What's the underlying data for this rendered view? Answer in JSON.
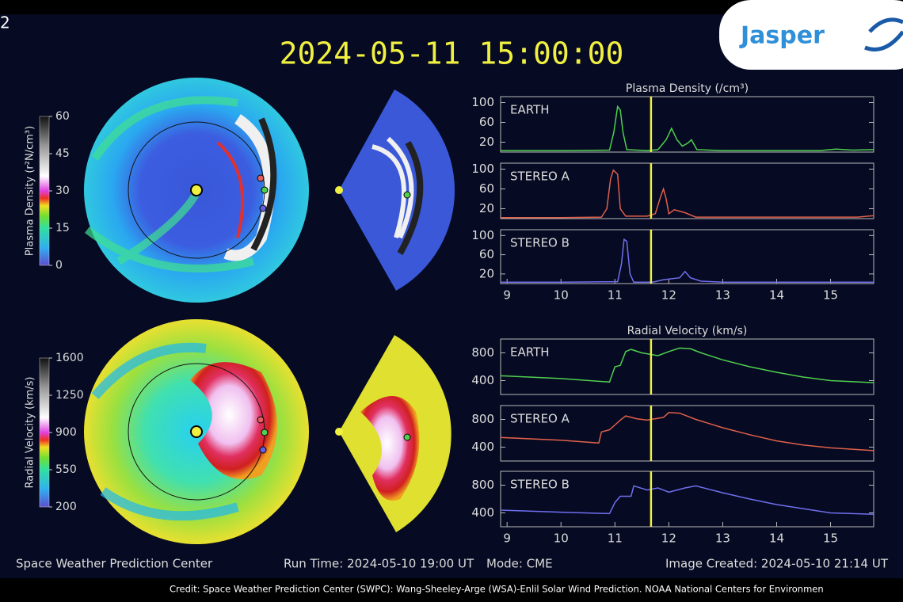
{
  "slide_number": "2",
  "logo": "Jasper",
  "title": "2024-05-11 15:00:00",
  "colorbars": [
    {
      "label": "Plasma Density (r²N/cm³)",
      "lim": [
        0,
        60
      ],
      "ticks": [
        0,
        15,
        30,
        45,
        60
      ]
    },
    {
      "label": "Radial Velocity (km/s)",
      "lim": [
        200,
        1600
      ],
      "ticks": [
        200,
        550,
        900,
        1250,
        1600
      ]
    }
  ],
  "chart_data": [
    {
      "type": "line",
      "title": "Plasma Density (/cm³)",
      "label": "EARTH",
      "color": "#4fd04f",
      "x": [
        8.88,
        10.0,
        10.9,
        10.98,
        11.05,
        11.1,
        11.15,
        11.22,
        11.6,
        11.8,
        11.95,
        12.05,
        12.15,
        12.25,
        12.35,
        12.42,
        12.52,
        13.0,
        14.8,
        15.1,
        15.4,
        15.8
      ],
      "values": [
        3,
        3,
        4,
        40,
        92,
        85,
        40,
        5,
        3,
        5,
        25,
        48,
        25,
        12,
        18,
        25,
        5,
        3,
        3,
        6,
        4,
        5
      ],
      "xlim": [
        8.88,
        15.8
      ],
      "ylim": [
        0,
        112
      ],
      "yticks": [
        20,
        60,
        100
      ],
      "marker_x": 11.67
    },
    {
      "type": "line",
      "label": "STEREO A",
      "color": "#e0604a",
      "x": [
        8.88,
        10.0,
        10.75,
        10.85,
        10.92,
        10.97,
        11.05,
        11.1,
        11.2,
        11.6,
        11.75,
        11.85,
        11.9,
        11.95,
        12.0,
        12.1,
        12.3,
        12.5,
        14.0,
        15.5,
        15.8
      ],
      "values": [
        2,
        2,
        3,
        20,
        80,
        98,
        90,
        20,
        5,
        5,
        10,
        45,
        60,
        40,
        10,
        18,
        12,
        3,
        3,
        3,
        6
      ],
      "xlim": [
        8.88,
        15.8
      ],
      "ylim": [
        0,
        112
      ],
      "yticks": [
        20,
        60,
        100
      ],
      "marker_x": 11.67
    },
    {
      "type": "line",
      "label": "STEREO B",
      "color": "#6f6fef",
      "x": [
        8.88,
        10.0,
        11.05,
        11.12,
        11.17,
        11.22,
        11.28,
        11.35,
        11.7,
        11.9,
        12.2,
        12.3,
        12.4,
        12.6,
        13.0,
        15.8
      ],
      "values": [
        3,
        3,
        4,
        40,
        92,
        88,
        20,
        3,
        3,
        8,
        12,
        25,
        12,
        5,
        3,
        3
      ],
      "xlim": [
        8.88,
        15.8
      ],
      "ylim": [
        0,
        112
      ],
      "yticks": [
        20,
        60,
        100
      ],
      "xticks": [
        9,
        10,
        11,
        12,
        13,
        14,
        15
      ],
      "marker_x": 11.67
    },
    {
      "type": "line",
      "title": "Radial Velocity (km/s)",
      "label": "EARTH",
      "color": "#4fd04f",
      "x": [
        8.88,
        10.0,
        10.9,
        11.0,
        11.1,
        11.2,
        11.3,
        11.5,
        11.8,
        12.0,
        12.2,
        12.4,
        12.6,
        13.0,
        13.5,
        14.0,
        14.5,
        15.0,
        15.8
      ],
      "values": [
        470,
        430,
        380,
        600,
        620,
        820,
        850,
        800,
        760,
        820,
        870,
        860,
        800,
        700,
        600,
        520,
        450,
        400,
        370
      ],
      "xlim": [
        8.88,
        15.8
      ],
      "ylim": [
        200,
        1000
      ],
      "yticks": [
        400,
        800
      ],
      "marker_x": 11.67
    },
    {
      "type": "line",
      "label": "STEREO A",
      "color": "#e0604a",
      "x": [
        8.88,
        10.0,
        10.7,
        10.75,
        10.9,
        11.0,
        11.1,
        11.2,
        11.4,
        11.6,
        11.9,
        12.0,
        12.2,
        12.5,
        13.0,
        13.5,
        14.0,
        14.5,
        15.0,
        15.8
      ],
      "values": [
        540,
        500,
        460,
        620,
        650,
        720,
        790,
        850,
        810,
        790,
        830,
        900,
        890,
        800,
        680,
        580,
        490,
        430,
        390,
        350
      ],
      "xlim": [
        8.88,
        15.8
      ],
      "ylim": [
        200,
        1000
      ],
      "yticks": [
        400,
        800
      ],
      "marker_x": 11.67
    },
    {
      "type": "line",
      "label": "STEREO B",
      "color": "#6f6fef",
      "x": [
        8.88,
        10.0,
        10.9,
        11.0,
        11.1,
        11.3,
        11.35,
        11.6,
        11.8,
        12.0,
        12.3,
        12.5,
        13.0,
        13.5,
        14.0,
        14.5,
        15.0,
        15.8
      ],
      "values": [
        440,
        410,
        390,
        550,
        640,
        640,
        790,
        730,
        760,
        700,
        760,
        790,
        690,
        600,
        520,
        460,
        400,
        380
      ],
      "xlim": [
        8.88,
        15.8
      ],
      "ylim": [
        200,
        1000
      ],
      "yticks": [
        400,
        800
      ],
      "xticks": [
        9,
        10,
        11,
        12,
        13,
        14,
        15
      ],
      "marker_x": 11.67
    }
  ],
  "footer": {
    "left": "Space Weather Prediction Center",
    "run_time": "Run Time: 2024-05-10 19:00 UT",
    "mode": "Mode: CME",
    "created": "Image Created: 2024-05-10 21:14 UT"
  },
  "credit": "Credit: Space Weather Prediction Center (SWPC): Wang-Sheeley-Arge (WSA)-Enlil Solar Wind Prediction. NOAA National Centers for Environmen"
}
